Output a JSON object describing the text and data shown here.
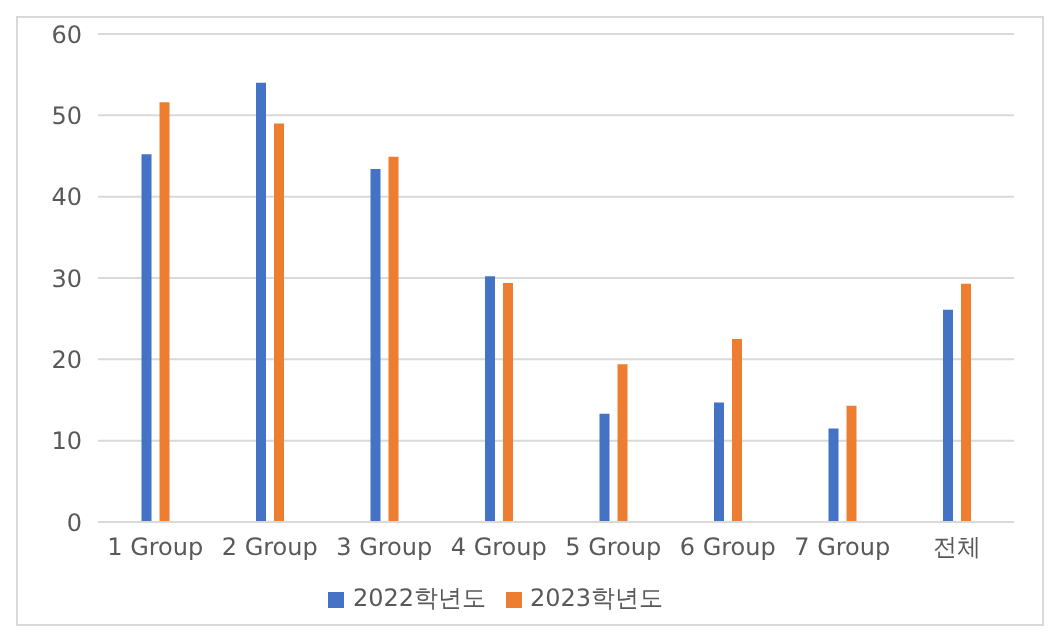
{
  "chart_data": {
    "type": "bar",
    "categories": [
      "1 Group",
      "2 Group",
      "3 Group",
      "4 Group",
      "5 Group",
      "6 Group",
      "7 Group",
      "전체"
    ],
    "series": [
      {
        "name": "2022학년도",
        "color": "#4472c4",
        "values": [
          45.2,
          54,
          43.4,
          30.2,
          13.3,
          14.7,
          11.5,
          26.1
        ]
      },
      {
        "name": "2023학년도",
        "color": "#ed7d31",
        "values": [
          51.6,
          49,
          44.9,
          29.4,
          19.4,
          22.5,
          14.3,
          29.3
        ]
      }
    ],
    "ylim": [
      0,
      60
    ],
    "yticks": [
      0,
      10,
      20,
      30,
      40,
      50,
      60
    ],
    "grid": "y",
    "legend": "bottom"
  }
}
